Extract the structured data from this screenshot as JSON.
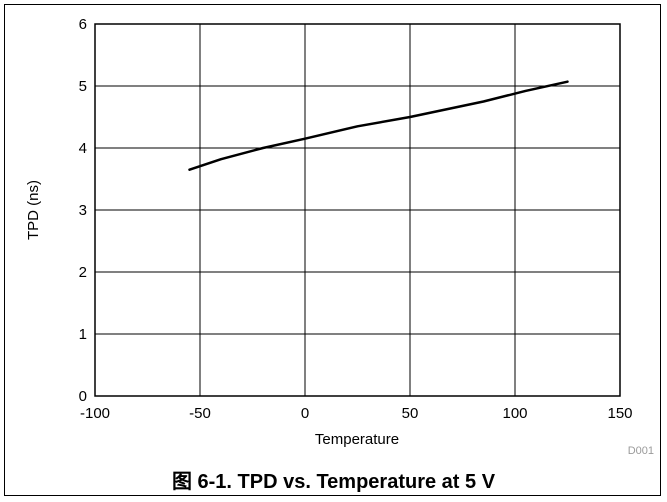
{
  "figure": {
    "caption_prefix": "图",
    "caption_text": "6-1. TPD vs. Temperature at 5 V",
    "code": "D001"
  },
  "chart_data": {
    "type": "line",
    "title": "",
    "xlabel": "Temperature",
    "ylabel": "TPD (ns)",
    "xlim": [
      -100,
      150
    ],
    "ylim": [
      0,
      6
    ],
    "xticks": [
      -100,
      -50,
      0,
      50,
      100,
      150
    ],
    "yticks": [
      0,
      1,
      2,
      3,
      4,
      5,
      6
    ],
    "grid": true,
    "colors": {
      "line": "#000000",
      "grid": "#000000",
      "background": "#ffffff"
    },
    "series": [
      {
        "x": [
          -55,
          -40,
          -20,
          0,
          25,
          50,
          85,
          105,
          125
        ],
        "y": [
          3.65,
          3.82,
          4.0,
          4.15,
          4.35,
          4.5,
          4.75,
          4.92,
          5.07
        ]
      }
    ]
  }
}
